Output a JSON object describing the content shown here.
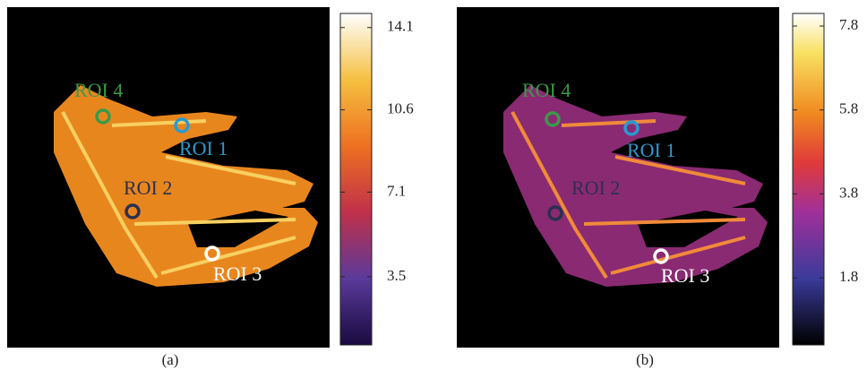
{
  "panels": [
    {
      "caption": "(a)",
      "roi_labels": [
        "ROI 4",
        "ROI 1",
        "ROI 2",
        "ROI 3"
      ],
      "colorbar": {
        "lim": [
          0.6,
          14.7
        ],
        "ticks": [
          14.1,
          10.6,
          7.1,
          3.5
        ]
      }
    },
    {
      "caption": "(b)",
      "roi_labels": [
        "ROI 4",
        "ROI 1",
        "ROI 2",
        "ROI 3"
      ],
      "colorbar": {
        "lim": [
          0.2,
          8.1
        ],
        "ticks": [
          7.8,
          5.8,
          3.8,
          1.8
        ]
      }
    }
  ]
}
